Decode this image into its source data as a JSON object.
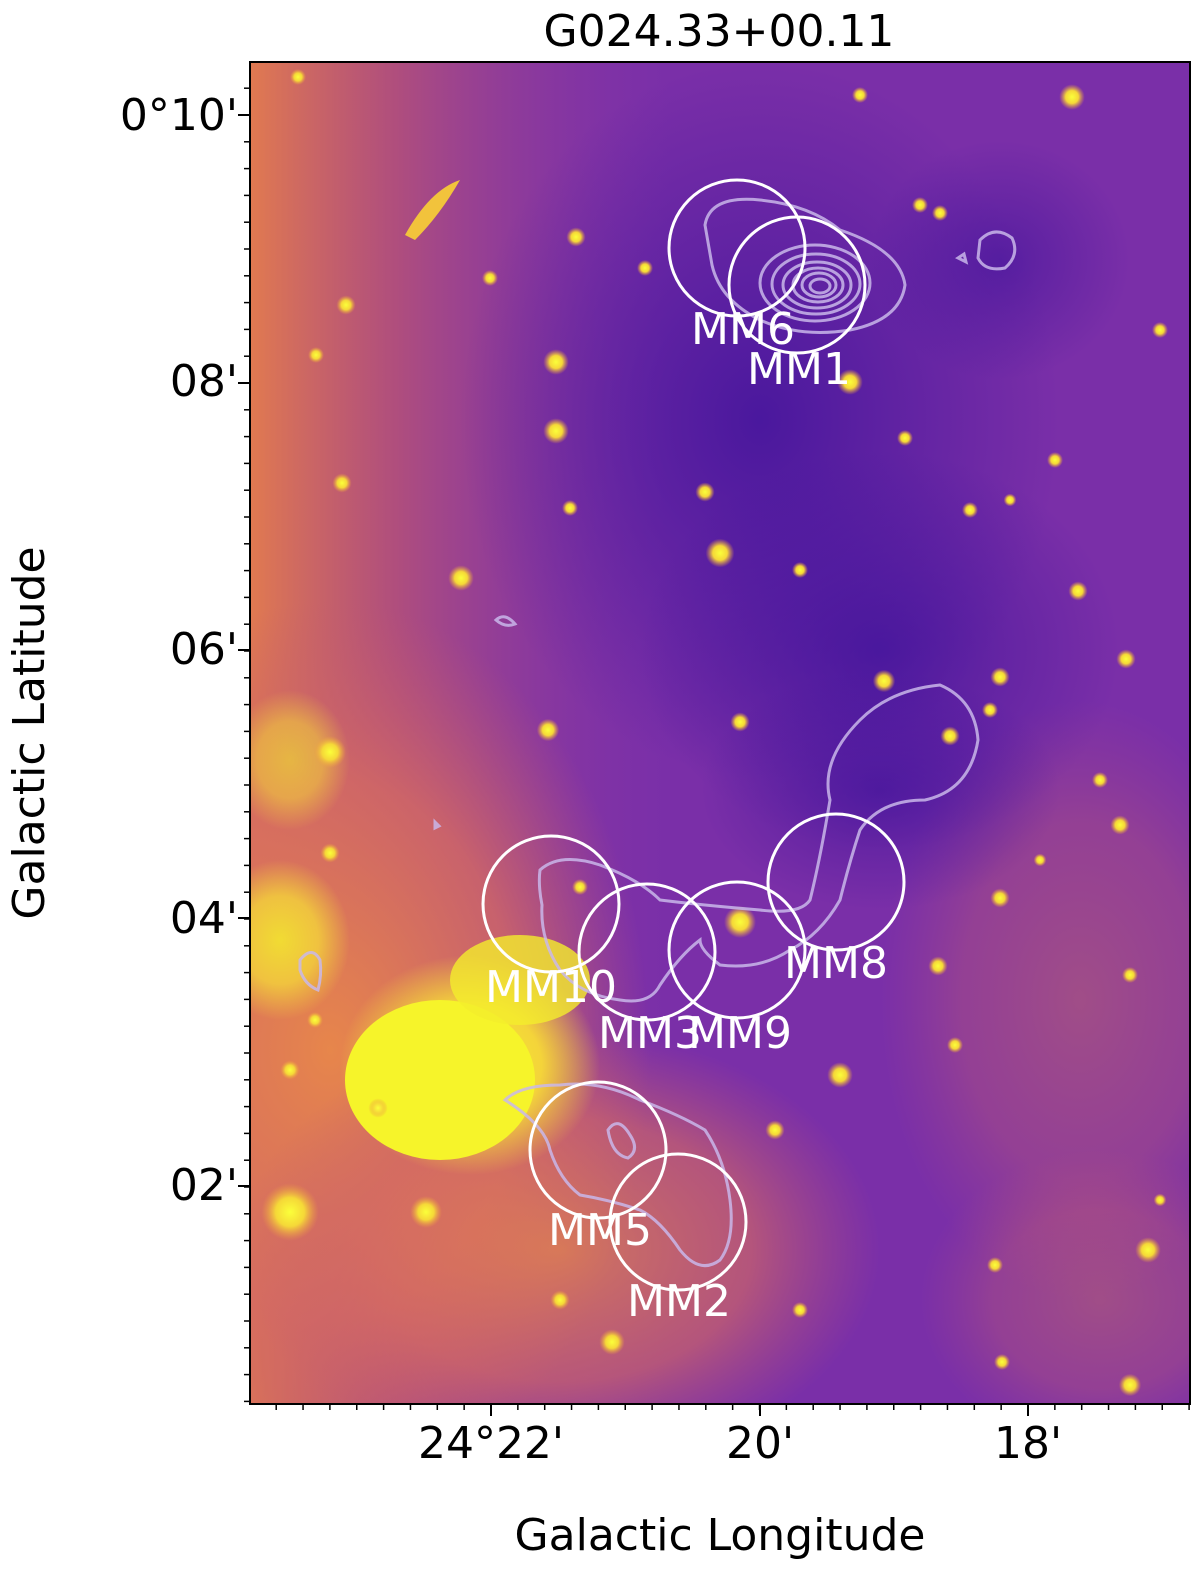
{
  "title": "G024.33+00.11",
  "xlabel": "Galactic Longitude",
  "ylabel": "Galactic Latitude",
  "x_ticks": [
    "24°22'",
    "20'",
    "18'"
  ],
  "y_ticks": [
    "0°10'",
    "08'",
    "06'",
    "04'",
    "02'"
  ],
  "sources": [
    {
      "name": "MM6"
    },
    {
      "name": "MM1"
    },
    {
      "name": "MM10"
    },
    {
      "name": "MM3"
    },
    {
      "name": "MM9"
    },
    {
      "name": "MM8"
    },
    {
      "name": "MM5"
    },
    {
      "name": "MM2"
    }
  ],
  "colors": {
    "background_dark": "#4b13a0",
    "background_mid": "#8c3fa8",
    "emission_orange": "#e07a4e",
    "emission_yellow": "#f2f02a",
    "circle": "#ffffff",
    "contour": "#c9b7ea"
  }
}
